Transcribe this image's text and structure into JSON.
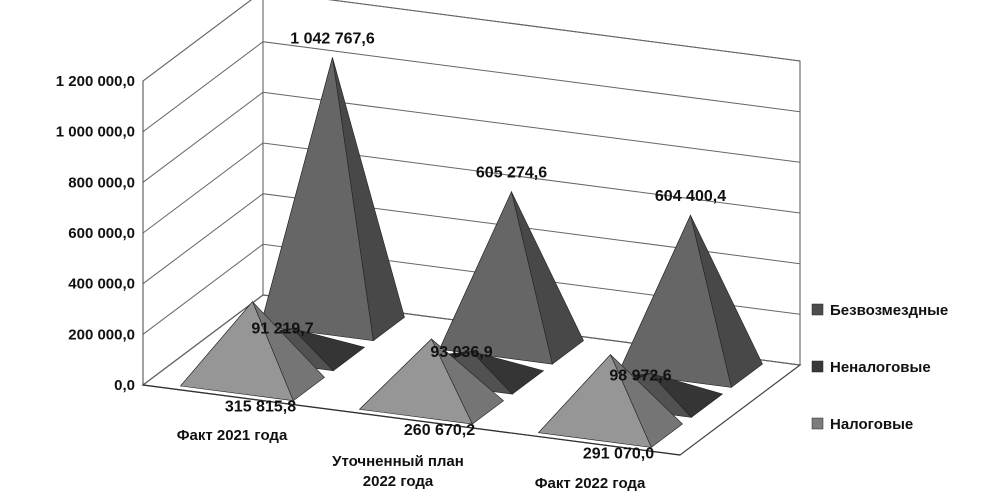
{
  "chart_data": {
    "type": "bar",
    "title": "",
    "xlabel": "",
    "ylabel": "",
    "ylim": [
      0,
      1200000
    ],
    "yticks": [
      0,
      200000,
      400000,
      600000,
      800000,
      1000000,
      1200000
    ],
    "ytick_labels": [
      "0,0",
      "200 000,0",
      "400 000,0",
      "600 000,0",
      "800 000,0",
      "1 000 000,0",
      "1 200 000,0"
    ],
    "categories": [
      [
        "Факт 2021 года"
      ],
      [
        "Уточненный план",
        "2022 года"
      ],
      [
        "Факт 2022 года"
      ]
    ],
    "series": [
      {
        "name": "Налоговые",
        "values": [
          315815.8,
          260670.2,
          291070.0
        ],
        "labels": [
          "315 815,8",
          "260 670,2",
          "291 070,0"
        ],
        "color": "#8a8a8a"
      },
      {
        "name": "Неналоговые",
        "values": [
          91219.7,
          93036.9,
          98972.6
        ],
        "labels": [
          "91 219,7",
          "93 036,9",
          "98 972,6"
        ],
        "color": "#3e3e3e"
      },
      {
        "name": "Безвозмездные",
        "values": [
          1042767.6,
          605274.6,
          604400.4
        ],
        "labels": [
          "1 042 767,6",
          "605 274,6",
          "604 400,4"
        ],
        "color": "#555555"
      }
    ],
    "legend_order": [
      2,
      1,
      0
    ],
    "legend": "right",
    "grid": true,
    "style": "3d-pyramid"
  }
}
